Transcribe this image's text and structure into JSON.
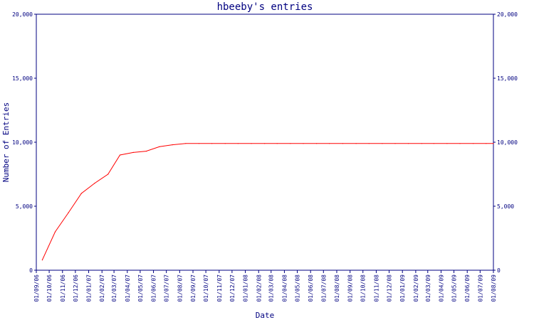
{
  "chart_data": {
    "type": "line",
    "title": "hbeeby's entries",
    "xlabel": "Date",
    "ylabel": "Number of Entries",
    "ylim": [
      0,
      20000
    ],
    "yticks": [
      0,
      5000,
      10000,
      15000,
      20000
    ],
    "ytick_labels": [
      "0",
      "5,000",
      "10,000",
      "15,000",
      "20,000"
    ],
    "grid": false,
    "colors": {
      "axis": "#000080",
      "line": "#ff0000",
      "background": "#ffffff"
    },
    "x_tick_labels": [
      "01/09/06",
      "01/10/06",
      "01/11/06",
      "01/12/06",
      "01/01/07",
      "01/02/07",
      "01/03/07",
      "01/04/07",
      "01/05/07",
      "01/06/07",
      "01/07/07",
      "01/08/07",
      "01/09/07",
      "01/10/07",
      "01/11/07",
      "01/12/07",
      "01/01/08",
      "01/02/08",
      "01/03/08",
      "01/04/08",
      "01/05/08",
      "01/06/08",
      "01/07/08",
      "01/08/08",
      "01/09/08",
      "01/10/08",
      "01/11/08",
      "01/12/08",
      "01/01/09",
      "01/02/09",
      "01/03/09",
      "01/04/09",
      "01/05/09",
      "01/06/09",
      "01/07/09",
      "01/08/09"
    ],
    "series": [
      {
        "x": [
          "2006-09-15",
          "2006-10-15",
          "2006-11-15",
          "2006-12-15",
          "2007-01-15",
          "2007-02-15",
          "2007-03-15",
          "2007-04-15",
          "2007-05-15",
          "2007-06-15",
          "2007-07-15",
          "2007-08-15",
          "2007-09-15",
          "2007-10-15",
          "2007-11-15",
          "2007-12-15",
          "2008-01-15",
          "2008-02-15",
          "2008-03-15",
          "2008-04-15",
          "2008-05-15",
          "2008-06-15",
          "2008-07-15",
          "2008-08-15",
          "2008-09-15",
          "2008-10-15",
          "2008-11-15",
          "2008-12-15",
          "2009-01-15",
          "2009-02-15",
          "2009-03-15",
          "2009-04-15",
          "2009-05-15",
          "2009-06-15",
          "2009-07-15",
          "2009-08-01"
        ],
        "y": [
          800,
          3000,
          4500,
          6000,
          6800,
          7500,
          9000,
          9200,
          9300,
          9650,
          9800,
          9900,
          9900,
          9900,
          9900,
          9900,
          9900,
          9900,
          9900,
          9900,
          9900,
          9900,
          9900,
          9900,
          9900,
          9900,
          9900,
          9900,
          9900,
          9900,
          9900,
          9900,
          9900,
          9900,
          9900,
          9900
        ]
      }
    ]
  }
}
